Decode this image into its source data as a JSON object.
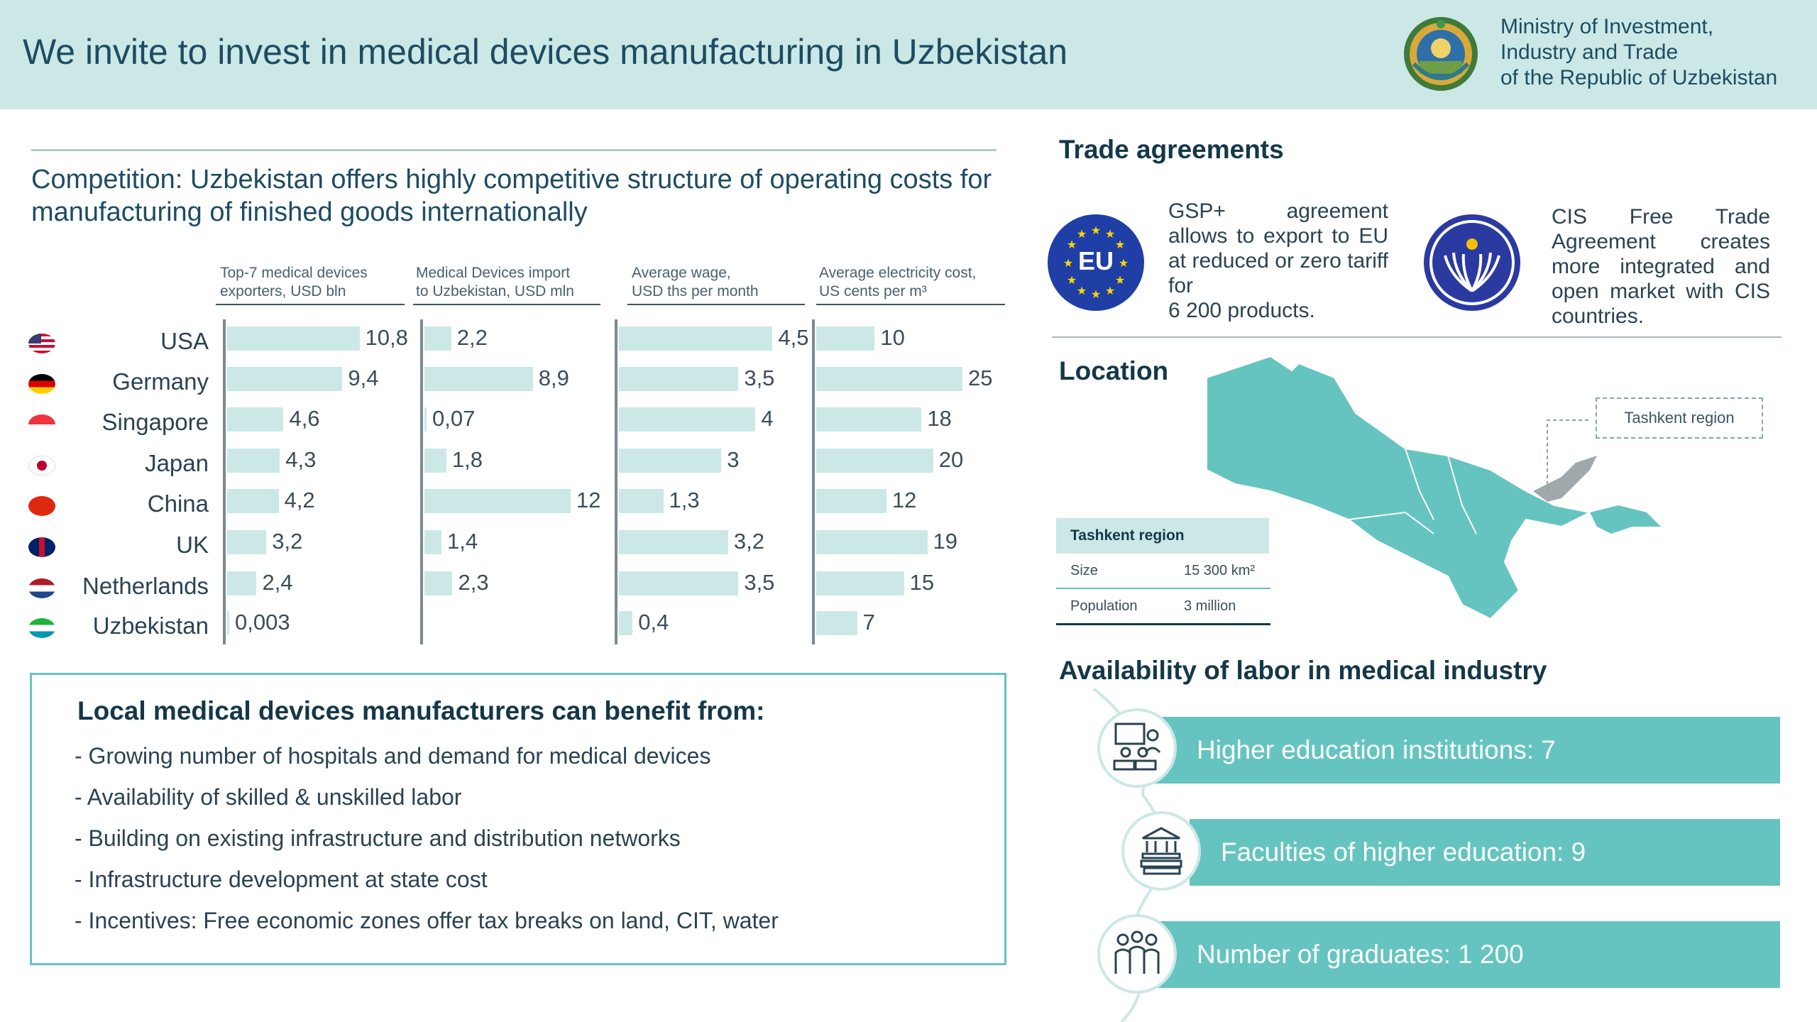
{
  "header": {
    "title": "We invite to invest in medical devices manufacturing in Uzbekistan",
    "ministry_lines": [
      "Ministry of Investment,",
      "Industry and Trade",
      "of the Republic of Uzbekistan"
    ]
  },
  "competition": {
    "title": "Competition: Uzbekistan offers highly competitive structure of operating costs for manufacturing of finished goods internationally",
    "columns": [
      {
        "line1": "Top-7 medical devices",
        "line2": "exporters, USD bln"
      },
      {
        "line1": "Medical Devices import",
        "line2": "to Uzbekistan, USD mln"
      },
      {
        "line1": "Average wage,",
        "line2": "USD ths per month"
      },
      {
        "line1": "Average electricity cost,",
        "line2": "US cents per m³"
      }
    ],
    "countries": [
      "USA",
      "Germany",
      "Singapore",
      "Japan",
      "China",
      "UK",
      "Netherlands",
      "Uzbekistan"
    ]
  },
  "chart_data": {
    "type": "bar",
    "categories": [
      "USA",
      "Germany",
      "Singapore",
      "Japan",
      "China",
      "UK",
      "Netherlands",
      "Uzbekistan"
    ],
    "series": [
      {
        "name": "Top-7 medical devices exporters, USD bln",
        "values": [
          10.8,
          9.4,
          4.6,
          4.3,
          4.2,
          3.2,
          2.4,
          0.003
        ],
        "labels": [
          "10,8",
          "9,4",
          "4,6",
          "4,3",
          "4,2",
          "3,2",
          "2,4",
          "0,003"
        ]
      },
      {
        "name": "Medical Devices import to Uzbekistan, USD mln",
        "values": [
          2.2,
          8.9,
          0.07,
          1.8,
          12,
          1.4,
          2.3,
          null
        ],
        "labels": [
          "2,2",
          "8,9",
          "0,07",
          "1,8",
          "12",
          "1,4",
          "2,3",
          ""
        ]
      },
      {
        "name": "Average wage, USD ths per month",
        "values": [
          4.5,
          3.5,
          4,
          3,
          1.3,
          3.2,
          3.5,
          0.4
        ],
        "labels": [
          "4,5",
          "3,5",
          "4",
          "3",
          "1,3",
          "3,2",
          "3,5",
          "0,4"
        ]
      },
      {
        "name": "Average electricity cost, US cents per m³",
        "values": [
          10,
          25,
          18,
          20,
          12,
          19,
          15,
          7
        ],
        "labels": [
          "10",
          "25",
          "18",
          "20",
          "12",
          "19",
          "15",
          "7"
        ]
      }
    ],
    "colors": {
      "bar": "#cbe8e6",
      "axis": "#7a8a92"
    }
  },
  "benefits": {
    "title": "Local medical devices manufacturers can benefit from:",
    "items": [
      "- Growing number of hospitals and demand for medical devices",
      "- Availability of skilled & unskilled labor",
      "- Building on existing infrastructure and distribution networks",
      "- Infrastructure development at state cost",
      "- Incentives: Free economic  zones offer tax breaks on land, CIT, water"
    ]
  },
  "trade": {
    "title": "Trade agreements",
    "eu_label": "EU",
    "gsp_lines": [
      "GSP+ agreement allows to export to EU at reduced or zero tariff for",
      "6 200 products."
    ],
    "cis_text": "CIS Free Trade Agreement creates more integrated and open market with CIS countries."
  },
  "location": {
    "title": "Location",
    "callout": "Tashkent region",
    "table_title": "Tashkent region",
    "rows": [
      {
        "key": "Size",
        "value": "15 300 km²"
      },
      {
        "key": "Population",
        "value": "3 million"
      }
    ]
  },
  "labor": {
    "title": "Availability of labor in medical industry",
    "items": [
      {
        "text": "Higher education institutions: 7",
        "icon": "classroom-icon"
      },
      {
        "text": "Faculties of higher education: 9",
        "icon": "university-books-icon"
      },
      {
        "text": "Number of graduates: 1 200",
        "icon": "graduates-icon"
      }
    ]
  },
  "colors": {
    "teal": "#65c4bf",
    "light_teal": "#cbe8e6",
    "navy": "#143848",
    "eu_blue": "#1f3ea6",
    "cis_blue": "#2b3aa0"
  }
}
